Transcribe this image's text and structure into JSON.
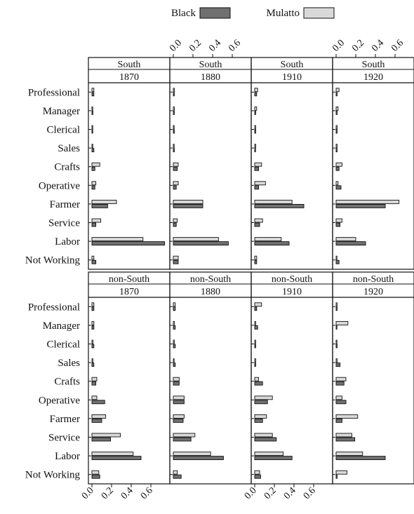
{
  "chart_data": {
    "type": "bar",
    "orientation": "horizontal",
    "xlim": [
      0,
      0.75
    ],
    "x_ticks": [
      0.0,
      0.2,
      0.4,
      0.6
    ],
    "x_tick_labels": [
      "0.0",
      "0.2",
      "0.4",
      "0.6"
    ],
    "categories": [
      "Professional",
      "Manager",
      "Clerical",
      "Sales",
      "Crafts",
      "Operative",
      "Farmer",
      "Service",
      "Labor",
      "Not Working"
    ],
    "legend": [
      {
        "name": "Black",
        "color": "#707070"
      },
      {
        "name": "Mulatto",
        "color": "#d9d9d9"
      }
    ],
    "legend_position": "top",
    "panels": [
      {
        "region": "South",
        "year": "1870",
        "black": [
          0.02,
          0.01,
          0.0,
          0.02,
          0.03,
          0.03,
          0.16,
          0.04,
          0.74,
          0.04
        ],
        "mulatto": [
          0.02,
          0.0,
          0.0,
          0.0,
          0.08,
          0.04,
          0.25,
          0.09,
          0.52,
          0.02
        ]
      },
      {
        "region": "South",
        "year": "1880",
        "black": [
          0.01,
          0.01,
          0.01,
          0.01,
          0.04,
          0.03,
          0.3,
          0.03,
          0.56,
          0.05
        ],
        "mulatto": [
          0.01,
          0.01,
          0.0,
          0.0,
          0.05,
          0.05,
          0.3,
          0.04,
          0.46,
          0.05
        ]
      },
      {
        "region": "South",
        "year": "1910",
        "black": [
          0.02,
          0.01,
          0.01,
          0.0,
          0.04,
          0.04,
          0.5,
          0.05,
          0.35,
          0.02
        ],
        "mulatto": [
          0.03,
          0.02,
          0.01,
          0.01,
          0.07,
          0.11,
          0.38,
          0.08,
          0.27,
          0.02
        ]
      },
      {
        "region": "South",
        "year": "1920",
        "black": [
          0.01,
          0.01,
          0.01,
          0.01,
          0.03,
          0.05,
          0.5,
          0.04,
          0.3,
          0.03
        ],
        "mulatto": [
          0.03,
          0.02,
          0.01,
          0.01,
          0.06,
          0.02,
          0.64,
          0.06,
          0.2,
          0.0
        ]
      },
      {
        "region": "non-South",
        "year": "1870",
        "black": [
          0.02,
          0.02,
          0.02,
          0.02,
          0.04,
          0.13,
          0.1,
          0.19,
          0.5,
          0.08
        ],
        "mulatto": [
          0.02,
          0.02,
          0.01,
          0.01,
          0.05,
          0.05,
          0.14,
          0.29,
          0.42,
          0.07
        ]
      },
      {
        "region": "non-South",
        "year": "1880",
        "black": [
          0.02,
          0.02,
          0.02,
          0.02,
          0.06,
          0.11,
          0.1,
          0.18,
          0.51,
          0.08
        ],
        "mulatto": [
          0.02,
          0.01,
          0.01,
          0.0,
          0.06,
          0.11,
          0.11,
          0.22,
          0.38,
          0.04
        ]
      },
      {
        "region": "non-South",
        "year": "1910",
        "black": [
          0.02,
          0.03,
          0.01,
          0.01,
          0.08,
          0.13,
          0.08,
          0.22,
          0.38,
          0.06
        ],
        "mulatto": [
          0.07,
          0.01,
          0.01,
          0.01,
          0.04,
          0.18,
          0.12,
          0.18,
          0.29,
          0.05
        ]
      },
      {
        "region": "non-South",
        "year": "1920",
        "black": [
          0.01,
          0.0,
          0.01,
          0.04,
          0.08,
          0.1,
          0.06,
          0.19,
          0.5,
          0.01
        ],
        "mulatto": [
          0.01,
          0.12,
          0.0,
          0.01,
          0.1,
          0.06,
          0.22,
          0.16,
          0.27,
          0.11
        ]
      }
    ]
  }
}
